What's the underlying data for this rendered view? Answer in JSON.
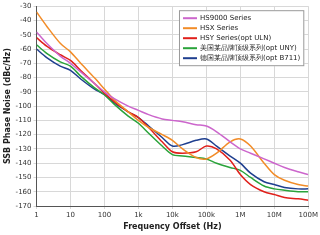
{
  "chart_data": {
    "type": "line",
    "x_label": "Frequency Offset (Hz)",
    "y_label": "SSB Phase Noise (dBc/Hz)",
    "log": "x",
    "grid": true,
    "legend": "upper right",
    "x": [
      1,
      2,
      5,
      10,
      20,
      50,
      100,
      200,
      500,
      1000,
      2000,
      5000,
      10000,
      20000,
      50000,
      100000,
      200000,
      500000,
      1000000,
      2000000,
      5000000,
      10000000,
      20000000,
      50000000,
      100000000
    ],
    "xlim": [
      1,
      100000000
    ],
    "xticks": [
      1,
      10,
      100,
      {
        "value": 1000,
        "label": "1k"
      },
      {
        "value": 10000,
        "label": "10k"
      },
      {
        "value": 100000,
        "label": "100k"
      },
      {
        "value": 1000000,
        "label": "1M"
      },
      {
        "value": 10000000,
        "label": "10M"
      },
      {
        "value": 100000000,
        "label": "100M"
      }
    ],
    "ylim": [
      -170,
      -30
    ],
    "yticks": [
      -170,
      -160,
      -150,
      -140,
      -130,
      -120,
      -110,
      -100,
      -90,
      -80,
      -70,
      -60,
      -50,
      -40,
      -30
    ],
    "series": [
      {
        "name": "HS9000 Series",
        "color": "#cc66cc",
        "values": [
          -48,
          -56,
          -65,
          -70,
          -76,
          -84,
          -90,
          -95,
          -100,
          -103,
          -106,
          -109,
          -110,
          -111,
          -113,
          -114,
          -118,
          -125,
          -130,
          -133,
          -137,
          -140,
          -143,
          -146,
          -148
        ]
      },
      {
        "name": "HSX Series",
        "color": "#f28c28",
        "values": [
          -34,
          -44,
          -56,
          -62,
          -70,
          -80,
          -88,
          -96,
          -104,
          -110,
          -115,
          -120,
          -124,
          -130,
          -136,
          -137,
          -133,
          -125,
          -123,
          -128,
          -140,
          -148,
          -152,
          -155,
          -156
        ]
      },
      {
        "name": "HSY Series(opt ULN)",
        "color": "#e0201b",
        "values": [
          -52,
          -58,
          -64,
          -68,
          -75,
          -84,
          -91,
          -97,
          -104,
          -108,
          -115,
          -125,
          -132,
          -133,
          -132,
          -128,
          -130,
          -138,
          -148,
          -155,
          -160,
          -162,
          -164,
          -165,
          -166
        ]
      },
      {
        "name": "美国某品牌顶级系列(opt UNY)",
        "color": "#2aa33a",
        "values": [
          -57,
          -63,
          -69,
          -72,
          -79,
          -87,
          -92,
          -99,
          -107,
          -112,
          -119,
          -128,
          -134,
          -135,
          -136,
          -137,
          -140,
          -143,
          -145,
          -150,
          -156,
          -158,
          -159,
          -160,
          -160
        ]
      },
      {
        "name": "德国某品牌顶级系列(opt B711)",
        "color": "#1f3f8f",
        "values": [
          -60,
          -66,
          -72,
          -75,
          -81,
          -88,
          -92,
          -98,
          -104,
          -108,
          -114,
          -122,
          -128,
          -127,
          -124,
          -123,
          -128,
          -135,
          -140,
          -147,
          -153,
          -155,
          -157,
          -158,
          -158
        ]
      }
    ]
  }
}
